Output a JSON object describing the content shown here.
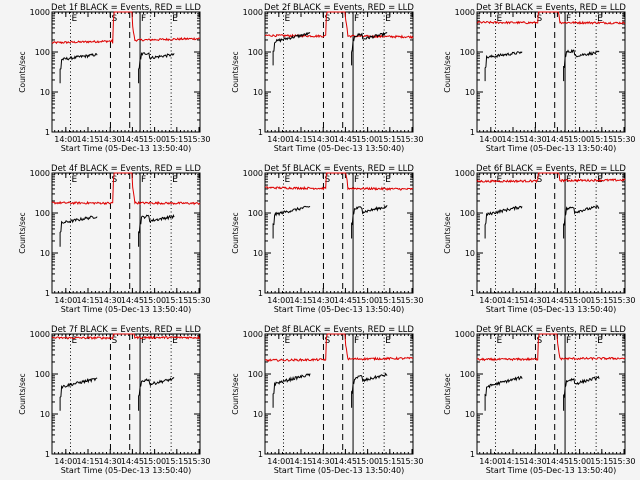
{
  "chart_data": {
    "type": "line",
    "shared": {
      "ylabel": "Counts/sec",
      "xlabel": "Start Time (05-Dec-13 13:50:40)",
      "x_range_minutes": [
        0,
        100
      ],
      "ylim": [
        1,
        1000
      ],
      "yscale": "log",
      "ytick_labels": [
        "1",
        "10",
        "100",
        "1000"
      ],
      "xticks": [
        {
          "min": 9.33,
          "label": "14:00"
        },
        {
          "min": 24.33,
          "label": "14:15"
        },
        {
          "min": 39.33,
          "label": "14:30"
        },
        {
          "min": 54.33,
          "label": "14:45"
        },
        {
          "min": 69.33,
          "label": "15:00"
        },
        {
          "min": 84.33,
          "label": "15:15"
        },
        {
          "min": 99.33,
          "label": "15:30"
        }
      ],
      "marker_lines": [
        {
          "min": 12.5,
          "style": "dotted",
          "label": "E"
        },
        {
          "min": 39.5,
          "style": "dashed",
          "label": "S"
        },
        {
          "min": 52.5,
          "style": "dashed",
          "label": ""
        },
        {
          "min": 59.5,
          "style": "solid",
          "label": "F"
        },
        {
          "min": 66.5,
          "style": "dotted",
          "label": ""
        },
        {
          "min": 80.5,
          "style": "dotted",
          "label": "E"
        }
      ],
      "series_names": [
        "BLACK = Events",
        "RED = LLD"
      ],
      "series_colors": [
        "#000000",
        "#dd0000"
      ],
      "black_segments": [
        [
          5.5,
          30.5
        ],
        [
          58.5,
          82.5
        ]
      ],
      "saa_window": [
        41,
        54
      ]
    },
    "panels": [
      {
        "title": "Det 1f BLACK = Events, RED = LLD",
        "red_level": 170,
        "red_trend": 1.25,
        "black_level": 75,
        "black_trend": 1.0
      },
      {
        "title": "Det 2f BLACK = Events, RED = LLD",
        "red_level": 260,
        "red_trend": 0.9,
        "black_level": 210,
        "black_trend": 1.2
      },
      {
        "title": "Det 3f BLACK = Events, RED = LLD",
        "red_level": 550,
        "red_trend": 0.95,
        "black_level": 85,
        "black_trend": 1.0
      },
      {
        "title": "Det 4f BLACK = Events, RED = LLD",
        "red_level": 180,
        "red_trend": 0.95,
        "black_level": 65,
        "black_trend": 1.1
      },
      {
        "title": "Det 5f BLACK = Events, RED = LLD",
        "red_level": 430,
        "red_trend": 0.9,
        "black_level": 105,
        "black_trend": 1.2
      },
      {
        "title": "Det 6f BLACK = Events, RED = LLD",
        "red_level": 620,
        "red_trend": 1.05,
        "black_level": 105,
        "black_trend": 1.2
      },
      {
        "title": "Det 7f BLACK = Events, RED = LLD",
        "red_level": 800,
        "red_trend": 1.0,
        "black_level": 55,
        "black_trend": 1.2
      },
      {
        "title": "Det 8f BLACK = Events, RED = LLD",
        "red_level": 220,
        "red_trend": 1.1,
        "black_level": 65,
        "black_trend": 1.3
      },
      {
        "title": "Det 9f BLACK = Events, RED = LLD",
        "red_level": 230,
        "red_trend": 1.05,
        "black_level": 55,
        "black_trend": 1.3
      }
    ]
  }
}
